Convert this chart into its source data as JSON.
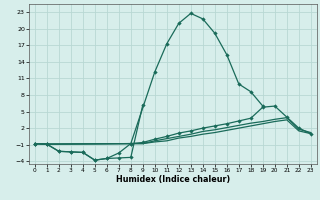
{
  "title": "",
  "xlabel": "Humidex (Indice chaleur)",
  "background_color": "#d7eeeb",
  "grid_color": "#b8d8d4",
  "line_color": "#1a6b5a",
  "xlim": [
    -0.5,
    23.5
  ],
  "ylim": [
    -4.5,
    24.5
  ],
  "xticks": [
    0,
    1,
    2,
    3,
    4,
    5,
    6,
    7,
    8,
    9,
    10,
    11,
    12,
    13,
    14,
    15,
    16,
    17,
    18,
    19,
    20,
    21,
    22,
    23
  ],
  "yticks": [
    -4,
    -1,
    2,
    5,
    8,
    11,
    14,
    17,
    20,
    23
  ],
  "line1_x": [
    0,
    1,
    2,
    3,
    4,
    5,
    6,
    7,
    8,
    9
  ],
  "line1_y": [
    -0.8,
    -0.9,
    -2.2,
    -2.3,
    -2.4,
    -3.8,
    -3.5,
    -3.4,
    -3.3,
    6.2
  ],
  "line2_x": [
    0,
    1,
    2,
    3,
    4,
    5,
    6,
    7,
    8,
    10,
    11,
    12,
    13,
    14,
    15,
    16,
    17,
    18,
    19
  ],
  "line2_y": [
    -0.8,
    -0.9,
    -2.2,
    -2.3,
    -2.4,
    -3.8,
    -3.5,
    -2.5,
    -0.8,
    12.2,
    17.3,
    21.0,
    22.8,
    21.8,
    19.2,
    15.3,
    10.0,
    8.6,
    6.0
  ],
  "line3_x": [
    0,
    1,
    8,
    9,
    10,
    11,
    12,
    13,
    14,
    15,
    16,
    17,
    18,
    19,
    20,
    21,
    22,
    23
  ],
  "line3_y": [
    -0.8,
    -0.9,
    -0.8,
    -0.8,
    -0.5,
    -0.3,
    0.2,
    0.5,
    0.9,
    1.2,
    1.6,
    2.0,
    2.4,
    2.8,
    3.2,
    3.5,
    1.5,
    1.0
  ],
  "line4_x": [
    0,
    1,
    8,
    9,
    10,
    11,
    12,
    13,
    14,
    15,
    16,
    17,
    18,
    19,
    20,
    21,
    22,
    23
  ],
  "line4_y": [
    -0.8,
    -0.9,
    -0.8,
    -0.8,
    -0.3,
    0.1,
    0.5,
    0.9,
    1.4,
    1.7,
    2.1,
    2.5,
    2.9,
    3.2,
    3.6,
    3.9,
    1.8,
    1.2
  ],
  "line5_x": [
    0,
    1,
    8,
    9,
    10,
    11,
    12,
    13,
    14,
    15,
    16,
    17,
    18,
    19,
    20,
    21,
    22,
    23
  ],
  "line5_y": [
    -0.8,
    -0.9,
    -0.8,
    -0.6,
    0.0,
    0.5,
    1.1,
    1.5,
    2.0,
    2.4,
    2.8,
    3.3,
    3.8,
    5.8,
    6.0,
    4.0,
    2.0,
    1.0
  ]
}
